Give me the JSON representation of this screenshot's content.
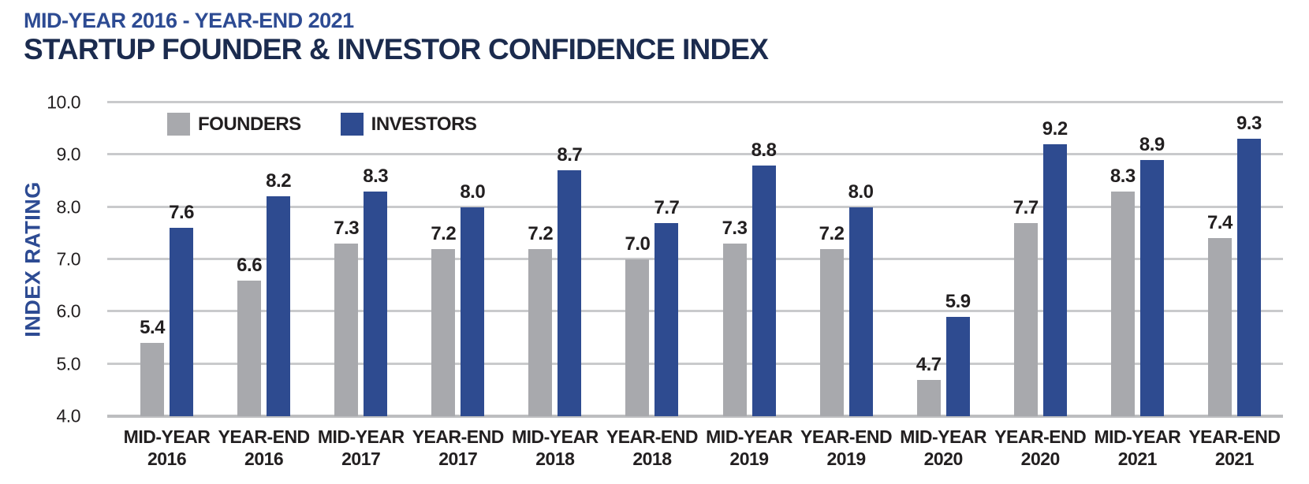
{
  "chart_data": {
    "type": "bar",
    "subtitle": "MID-YEAR 2016 - YEAR-END 2021",
    "title": "STARTUP FOUNDER & INVESTOR CONFIDENCE INDEX",
    "ylabel": "INDEX RATING",
    "ylim": [
      4.0,
      10.0
    ],
    "ytick_step": 1.0,
    "yticks": [
      "10.0",
      "9.0",
      "8.0",
      "7.0",
      "6.0",
      "5.0",
      "4.0"
    ],
    "grid": true,
    "legend_position": "top-left-inside",
    "categories": [
      {
        "line1": "MID-YEAR",
        "line2": "2016"
      },
      {
        "line1": "YEAR-END",
        "line2": "2016"
      },
      {
        "line1": "MID-YEAR",
        "line2": "2017"
      },
      {
        "line1": "YEAR-END",
        "line2": "2017"
      },
      {
        "line1": "MID-YEAR",
        "line2": "2018"
      },
      {
        "line1": "YEAR-END",
        "line2": "2018"
      },
      {
        "line1": "MID-YEAR",
        "line2": "2019"
      },
      {
        "line1": "YEAR-END",
        "line2": "2019"
      },
      {
        "line1": "MID-YEAR",
        "line2": "2020"
      },
      {
        "line1": "YEAR-END",
        "line2": "2020"
      },
      {
        "line1": "MID-YEAR",
        "line2": "2021"
      },
      {
        "line1": "YEAR-END",
        "line2": "2021"
      }
    ],
    "series": [
      {
        "name": "FOUNDERS",
        "color": "#a8a9ad",
        "values": [
          5.4,
          6.6,
          7.3,
          7.2,
          7.2,
          7.0,
          7.3,
          7.2,
          4.7,
          7.7,
          8.3,
          7.4
        ]
      },
      {
        "name": "INVESTORS",
        "color": "#2e4b90",
        "values": [
          7.6,
          8.2,
          8.3,
          8.0,
          8.7,
          7.7,
          8.8,
          8.0,
          5.9,
          9.2,
          8.9,
          9.3
        ]
      }
    ],
    "colors": {
      "title": "#1b2b4e",
      "subtitle": "#2d4b93",
      "axis_text": "#221f20",
      "gridline": "#c9cacc",
      "baseline": "#bdbec0",
      "founders": "#a8a9ad",
      "investors": "#2e4b90"
    }
  }
}
